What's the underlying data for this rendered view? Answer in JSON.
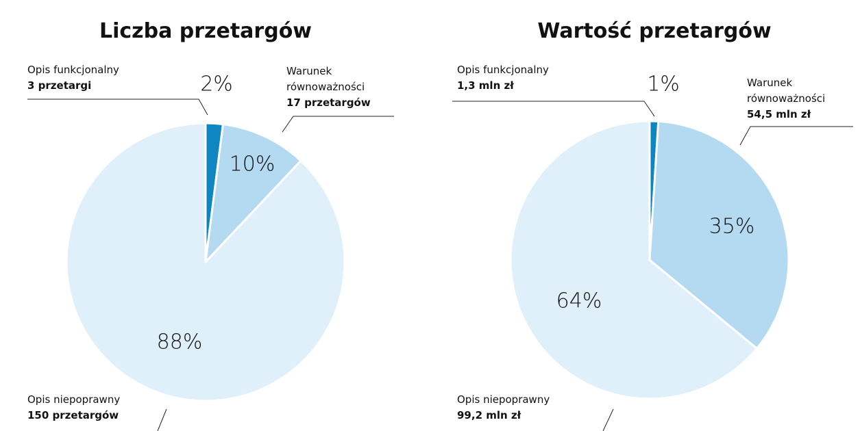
{
  "chart_data": [
    {
      "type": "pie",
      "title": "Liczba przetargów",
      "categories": [
        "Opis funkcjonalny",
        "Warunek równoważności",
        "Opis niepoprawny"
      ],
      "values": [
        2,
        10,
        88
      ],
      "value_labels": [
        "2%",
        "10%",
        "88%"
      ],
      "details": [
        "3 przetargi",
        "17 przetargów",
        "150 przetargów"
      ],
      "colors": [
        "#0e86c2",
        "#b3daf1",
        "#e0f0fa"
      ]
    },
    {
      "type": "pie",
      "title": "Wartość przetargów",
      "categories": [
        "Opis funkcjonalny",
        "Warunek równoważności",
        "Opis niepoprawny"
      ],
      "values": [
        1,
        35,
        64
      ],
      "value_labels": [
        "1%",
        "35%",
        "64%"
      ],
      "details": [
        "1,3 mln zł",
        "54,5 mln zł",
        "99,2 mln zł"
      ],
      "colors": [
        "#0e86c2",
        "#b3daf1",
        "#e0f0fa"
      ]
    }
  ]
}
